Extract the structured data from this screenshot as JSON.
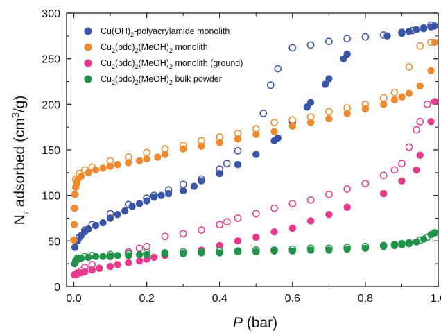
{
  "chart_data": {
    "type": "scatter",
    "title": "",
    "xlabel": {
      "main": "P",
      "unit": " (bar)"
    },
    "ylabel": {
      "pre": "N",
      "sub": "2",
      "mid": " adsorbed (cm",
      "sup": "3",
      "post": "/g)"
    },
    "xlim": [
      -0.02,
      1.0
    ],
    "ylim": [
      0,
      300
    ],
    "xticks": [
      0.0,
      0.2,
      0.4,
      0.6,
      0.8,
      1.0
    ],
    "xtick_labels": [
      "0.0",
      "0.2",
      "0.4",
      "0.6",
      "0.8",
      "1.0"
    ],
    "yticks": [
      0,
      50,
      100,
      150,
      200,
      250,
      300
    ],
    "ytick_labels": [
      "0",
      "50",
      "100",
      "150",
      "200",
      "250",
      "300"
    ],
    "legend_position": "top-left",
    "marker_note": "filled = adsorption, open = desorption",
    "series": [
      {
        "id": "cuoh",
        "label_parts": [
          [
            "Cu(OH)",
            "n"
          ],
          [
            "2",
            "sub"
          ],
          [
            "-polyacrylamide monolith",
            "n"
          ]
        ],
        "color": "#3a55a6",
        "adsorption": [
          [
            0.003,
            43
          ],
          [
            0.01,
            50
          ],
          [
            0.02,
            56
          ],
          [
            0.03,
            60
          ],
          [
            0.04,
            63
          ],
          [
            0.06,
            67
          ],
          [
            0.08,
            70
          ],
          [
            0.1,
            75
          ],
          [
            0.12,
            79
          ],
          [
            0.14,
            83
          ],
          [
            0.16,
            88
          ],
          [
            0.18,
            91
          ],
          [
            0.2,
            94
          ],
          [
            0.22,
            98
          ],
          [
            0.24,
            100
          ],
          [
            0.26,
            102
          ],
          [
            0.3,
            105
          ],
          [
            0.33,
            110
          ],
          [
            0.35,
            116
          ],
          [
            0.4,
            124
          ],
          [
            0.45,
            134
          ],
          [
            0.5,
            145
          ],
          [
            0.55,
            160
          ],
          [
            0.56,
            163
          ],
          [
            0.6,
            180
          ],
          [
            0.64,
            197
          ],
          [
            0.65,
            202
          ],
          [
            0.69,
            222
          ],
          [
            0.7,
            228
          ],
          [
            0.74,
            250
          ],
          [
            0.75,
            255
          ],
          [
            0.86,
            275
          ],
          [
            0.9,
            278
          ],
          [
            0.92,
            280
          ],
          [
            0.94,
            282
          ],
          [
            0.96,
            283
          ],
          [
            0.98,
            285
          ],
          [
            0.99,
            286
          ]
        ],
        "desorption": [
          [
            0.98,
            287
          ],
          [
            0.96,
            284
          ],
          [
            0.93,
            281
          ],
          [
            0.9,
            279
          ],
          [
            0.85,
            276
          ],
          [
            0.8,
            274
          ],
          [
            0.75,
            272
          ],
          [
            0.7,
            269
          ],
          [
            0.65,
            265
          ],
          [
            0.6,
            262
          ],
          [
            0.56,
            239
          ],
          [
            0.54,
            221
          ],
          [
            0.52,
            190
          ],
          [
            0.5,
            173
          ],
          [
            0.45,
            149
          ],
          [
            0.42,
            135
          ],
          [
            0.4,
            129
          ],
          [
            0.35,
            118
          ],
          [
            0.3,
            112
          ],
          [
            0.26,
            106
          ],
          [
            0.22,
            100
          ],
          [
            0.2,
            97
          ],
          [
            0.15,
            90
          ],
          [
            0.1,
            80
          ],
          [
            0.05,
            68
          ],
          [
            0.03,
            62
          ],
          [
            0.015,
            54
          ]
        ]
      },
      {
        "id": "cubdc-monolith",
        "label_parts": [
          [
            "Cu",
            "n"
          ],
          [
            "2",
            "sub"
          ],
          [
            "(bdc)",
            "n"
          ],
          [
            "2",
            "sub"
          ],
          [
            "(MeOH)",
            "n"
          ],
          [
            "2",
            "sub"
          ],
          [
            " monolith",
            "n"
          ]
        ],
        "color": "#ef8a2e",
        "adsorption": [
          [
            0.0005,
            51
          ],
          [
            0.001,
            68
          ],
          [
            0.002,
            86
          ],
          [
            0.003,
            101
          ],
          [
            0.005,
            109
          ],
          [
            0.008,
            113
          ],
          [
            0.01,
            117
          ],
          [
            0.02,
            121
          ],
          [
            0.04,
            125
          ],
          [
            0.06,
            128
          ],
          [
            0.08,
            130
          ],
          [
            0.1,
            132
          ],
          [
            0.12,
            134
          ],
          [
            0.15,
            136
          ],
          [
            0.18,
            138
          ],
          [
            0.2,
            140
          ],
          [
            0.23,
            142
          ],
          [
            0.25,
            145
          ],
          [
            0.3,
            151
          ],
          [
            0.35,
            154
          ],
          [
            0.4,
            158
          ],
          [
            0.45,
            162
          ],
          [
            0.5,
            167
          ],
          [
            0.55,
            170
          ],
          [
            0.6,
            176
          ],
          [
            0.65,
            180
          ],
          [
            0.7,
            184
          ],
          [
            0.75,
            190
          ],
          [
            0.8,
            195
          ],
          [
            0.85,
            200
          ],
          [
            0.88,
            205
          ],
          [
            0.9,
            208
          ],
          [
            0.92,
            212
          ],
          [
            0.95,
            220
          ],
          [
            0.98,
            237
          ],
          [
            0.99,
            268
          ]
        ],
        "desorption": [
          [
            0.98,
            268
          ],
          [
            0.95,
            264
          ],
          [
            0.92,
            241
          ],
          [
            0.88,
            213
          ],
          [
            0.85,
            207
          ],
          [
            0.8,
            200
          ],
          [
            0.75,
            196
          ],
          [
            0.7,
            192
          ],
          [
            0.65,
            186
          ],
          [
            0.6,
            183
          ],
          [
            0.55,
            180
          ],
          [
            0.5,
            173
          ],
          [
            0.45,
            168
          ],
          [
            0.4,
            164
          ],
          [
            0.35,
            160
          ],
          [
            0.3,
            155
          ],
          [
            0.25,
            151
          ],
          [
            0.2,
            147
          ],
          [
            0.15,
            142
          ],
          [
            0.1,
            138
          ],
          [
            0.05,
            131
          ],
          [
            0.03,
            128
          ],
          [
            0.015,
            124
          ],
          [
            0.005,
            118
          ]
        ]
      },
      {
        "id": "cubdc-ground",
        "label_parts": [
          [
            "Cu",
            "n"
          ],
          [
            "2",
            "sub"
          ],
          [
            "(bdc)",
            "n"
          ],
          [
            "2",
            "sub"
          ],
          [
            "(MeOH)",
            "n"
          ],
          [
            "2",
            "sub"
          ],
          [
            " monolith (ground)",
            "n"
          ]
        ],
        "color": "#e8388c",
        "adsorption": [
          [
            0.002,
            13
          ],
          [
            0.01,
            14
          ],
          [
            0.02,
            15
          ],
          [
            0.03,
            16
          ],
          [
            0.05,
            18
          ],
          [
            0.07,
            20
          ],
          [
            0.1,
            22
          ],
          [
            0.12,
            24
          ],
          [
            0.15,
            26
          ],
          [
            0.18,
            28
          ],
          [
            0.2,
            30
          ],
          [
            0.22,
            32
          ],
          [
            0.25,
            34
          ],
          [
            0.35,
            40
          ],
          [
            0.4,
            45
          ],
          [
            0.45,
            50
          ],
          [
            0.5,
            54
          ],
          [
            0.55,
            60
          ],
          [
            0.6,
            64
          ],
          [
            0.65,
            72
          ],
          [
            0.7,
            79
          ],
          [
            0.75,
            87
          ],
          [
            0.85,
            102
          ],
          [
            0.9,
            116
          ],
          [
            0.94,
            128
          ],
          [
            0.95,
            144
          ],
          [
            0.98,
            181
          ],
          [
            0.99,
            203
          ]
        ],
        "desorption": [
          [
            0.97,
            200
          ],
          [
            0.95,
            181
          ],
          [
            0.94,
            172
          ],
          [
            0.92,
            153
          ],
          [
            0.9,
            135
          ],
          [
            0.88,
            128
          ],
          [
            0.85,
            122
          ],
          [
            0.8,
            113
          ],
          [
            0.75,
            107
          ],
          [
            0.7,
            101
          ],
          [
            0.65,
            95
          ],
          [
            0.6,
            91
          ],
          [
            0.55,
            86
          ],
          [
            0.5,
            80
          ],
          [
            0.45,
            75
          ],
          [
            0.42,
            71
          ],
          [
            0.4,
            68
          ],
          [
            0.35,
            62
          ],
          [
            0.3,
            58
          ],
          [
            0.25,
            55
          ],
          [
            0.2,
            44
          ],
          [
            0.18,
            42
          ],
          [
            0.15,
            38
          ],
          [
            0.1,
            33
          ],
          [
            0.05,
            24
          ],
          [
            0.03,
            21
          ],
          [
            0.02,
            17
          ],
          [
            0.01,
            15
          ]
        ]
      },
      {
        "id": "cubdc-bulk",
        "label_parts": [
          [
            "Cu",
            "n"
          ],
          [
            "2",
            "sub"
          ],
          [
            "(bdc)",
            "n"
          ],
          [
            "2",
            "sub"
          ],
          [
            "(MeOH)",
            "n"
          ],
          [
            "2",
            "sub"
          ],
          [
            " bulk powder",
            "n"
          ]
        ],
        "color": "#21924a",
        "adsorption": [
          [
            0.002,
            25
          ],
          [
            0.005,
            28
          ],
          [
            0.01,
            30
          ],
          [
            0.02,
            31
          ],
          [
            0.04,
            32
          ],
          [
            0.06,
            33
          ],
          [
            0.08,
            33
          ],
          [
            0.1,
            33
          ],
          [
            0.12,
            34
          ],
          [
            0.15,
            34
          ],
          [
            0.18,
            35
          ],
          [
            0.2,
            35
          ],
          [
            0.25,
            36
          ],
          [
            0.3,
            36
          ],
          [
            0.35,
            37
          ],
          [
            0.4,
            37
          ],
          [
            0.45,
            38
          ],
          [
            0.5,
            38
          ],
          [
            0.55,
            39
          ],
          [
            0.6,
            39
          ],
          [
            0.65,
            40
          ],
          [
            0.7,
            40
          ],
          [
            0.75,
            41
          ],
          [
            0.8,
            42
          ],
          [
            0.85,
            44
          ],
          [
            0.88,
            45
          ],
          [
            0.9,
            46
          ],
          [
            0.92,
            47
          ],
          [
            0.94,
            49
          ],
          [
            0.96,
            52
          ],
          [
            0.98,
            57
          ],
          [
            0.99,
            59
          ]
        ],
        "desorption": [
          [
            0.99,
            59
          ],
          [
            0.97,
            54
          ],
          [
            0.95,
            51
          ],
          [
            0.92,
            48
          ],
          [
            0.9,
            47
          ],
          [
            0.88,
            46
          ],
          [
            0.85,
            45
          ],
          [
            0.8,
            44
          ],
          [
            0.75,
            43
          ],
          [
            0.7,
            42
          ],
          [
            0.65,
            42
          ],
          [
            0.6,
            41
          ],
          [
            0.55,
            40
          ],
          [
            0.5,
            40
          ],
          [
            0.45,
            39
          ],
          [
            0.4,
            39
          ],
          [
            0.35,
            38
          ],
          [
            0.3,
            38
          ],
          [
            0.25,
            37
          ],
          [
            0.2,
            37
          ],
          [
            0.15,
            36
          ],
          [
            0.1,
            35
          ],
          [
            0.05,
            34
          ],
          [
            0.03,
            33
          ],
          [
            0.01,
            31
          ]
        ]
      }
    ]
  }
}
